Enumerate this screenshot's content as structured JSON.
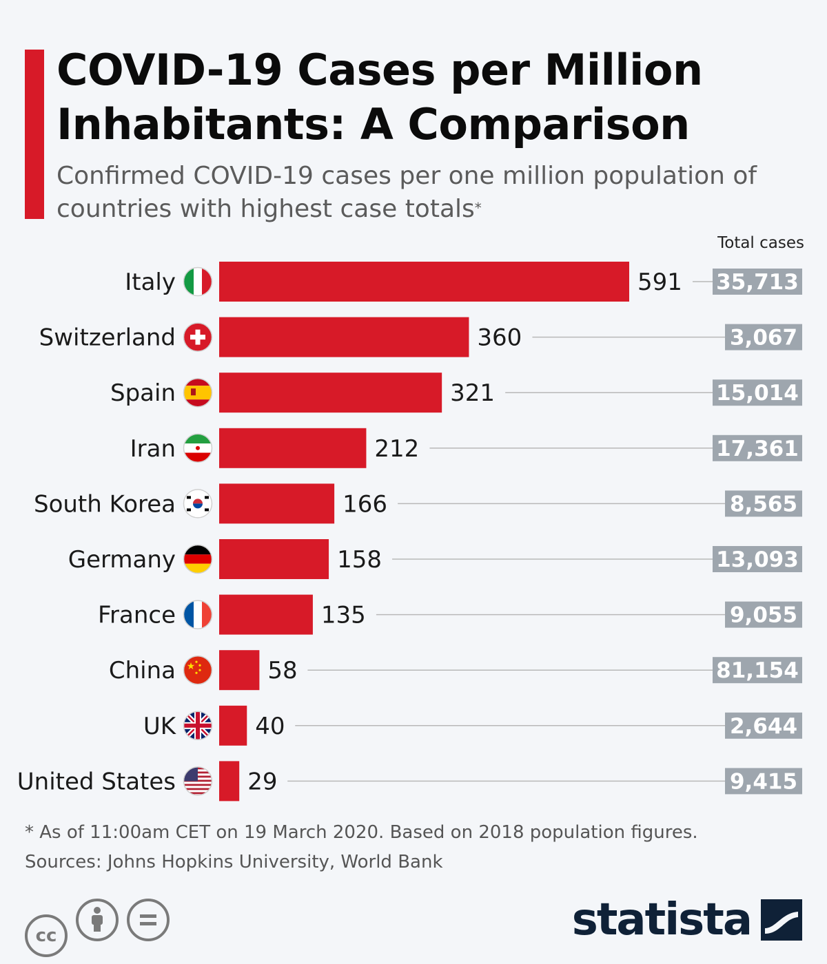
{
  "title": "COVID-19 Cases per Million Inhabitants: A Comparison",
  "subtitle": "Confirmed COVID-19 cases per one million population of countries with highest case totals",
  "subtitle_mark": "*",
  "total_header": "Total cases",
  "footnote_line1": "* As of 11:00am CET on 19 March 2020. Based on 2018 population figures.",
  "footnote_line2": "Sources: Johns Hopkins University, World Bank",
  "brand": "statista",
  "colors": {
    "bar": "#d71a28",
    "total_box": "#9ea6ae",
    "leader_line": "#b8b8b8",
    "accent": "#d71a28"
  },
  "license_icons": [
    "creative-commons-icon",
    "attribution-icon",
    "no-derivatives-icon"
  ],
  "chart_data": {
    "type": "bar",
    "orientation": "horizontal",
    "categories": [
      "Italy",
      "Switzerland",
      "Spain",
      "Iran",
      "South Korea",
      "Germany",
      "France",
      "China",
      "UK",
      "United States"
    ],
    "values": [
      591,
      360,
      321,
      212,
      166,
      158,
      135,
      58,
      40,
      29
    ],
    "total_cases": [
      "35,713",
      "3,067",
      "15,014",
      "17,361",
      "8,565",
      "13,093",
      "9,055",
      "81,154",
      "2,644",
      "9,415"
    ],
    "flag_icons": [
      "italy-flag-icon",
      "switzerland-flag-icon",
      "spain-flag-icon",
      "iran-flag-icon",
      "south-korea-flag-icon",
      "germany-flag-icon",
      "france-flag-icon",
      "china-flag-icon",
      "uk-flag-icon",
      "united-states-flag-icon"
    ],
    "xlim": [
      0,
      591
    ],
    "grid": false,
    "legend": "none"
  }
}
